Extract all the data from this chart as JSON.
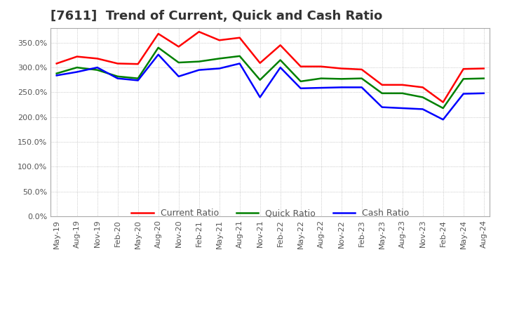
{
  "title": "[7611]  Trend of Current, Quick and Cash Ratio",
  "x_labels": [
    "May-19",
    "Aug-19",
    "Nov-19",
    "Feb-20",
    "May-20",
    "Aug-20",
    "Nov-20",
    "Feb-21",
    "May-21",
    "Aug-21",
    "Nov-21",
    "Feb-22",
    "May-22",
    "Aug-22",
    "Nov-22",
    "Feb-23",
    "May-23",
    "Aug-23",
    "Nov-23",
    "Feb-24",
    "May-24",
    "Aug-24"
  ],
  "current_ratio": [
    308,
    322,
    318,
    308,
    307,
    368,
    342,
    372,
    355,
    360,
    309,
    345,
    302,
    302,
    298,
    296,
    265,
    265,
    260,
    230,
    297,
    298
  ],
  "quick_ratio": [
    288,
    300,
    295,
    282,
    278,
    340,
    310,
    312,
    318,
    323,
    275,
    315,
    272,
    278,
    277,
    278,
    248,
    248,
    240,
    218,
    277,
    278
  ],
  "cash_ratio": [
    284,
    291,
    300,
    278,
    274,
    326,
    282,
    295,
    298,
    308,
    240,
    300,
    258,
    259,
    260,
    260,
    220,
    218,
    216,
    195,
    247,
    248
  ],
  "current_color": "#FF0000",
  "quick_color": "#008000",
  "cash_color": "#0000FF",
  "ylim": [
    0,
    380
  ],
  "yticks": [
    0,
    50,
    100,
    150,
    200,
    250,
    300,
    350
  ],
  "background_color": "#ffffff",
  "grid_color": "#aaaaaa",
  "title_fontsize": 13,
  "tick_fontsize": 8
}
